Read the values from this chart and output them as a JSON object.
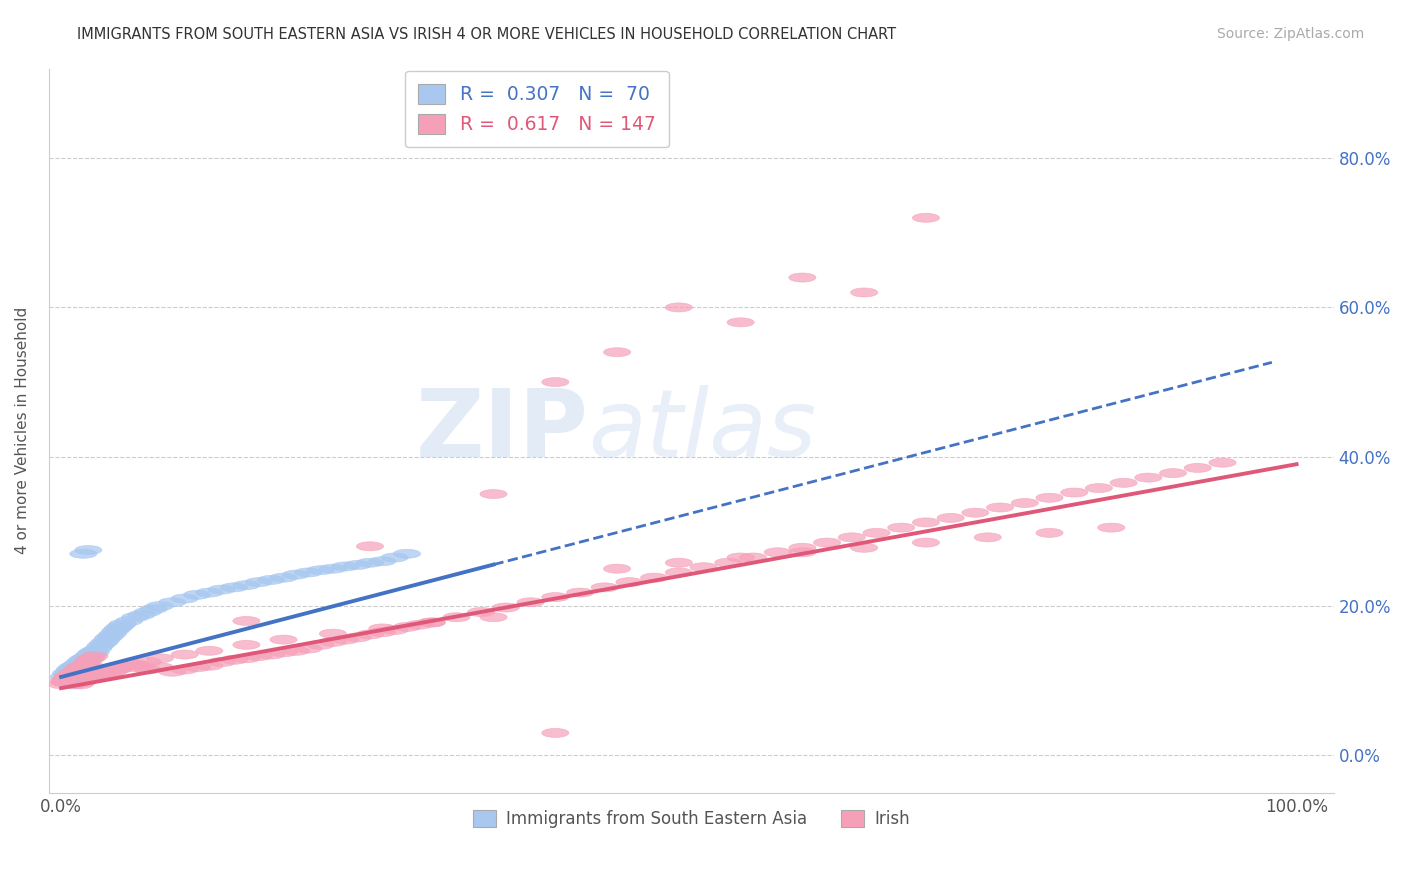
{
  "title": "IMMIGRANTS FROM SOUTH EASTERN ASIA VS IRISH 4 OR MORE VEHICLES IN HOUSEHOLD CORRELATION CHART",
  "source": "Source: ZipAtlas.com",
  "ylabel": "4 or more Vehicles in Household",
  "color_blue": "#a8c8f0",
  "color_pink": "#f5a0b8",
  "color_blue_line": "#4472c4",
  "color_pink_line": "#e05878",
  "color_blue_text": "#4472c4",
  "color_pink_text": "#e05878",
  "color_grid": "#cccccc",
  "ytick_vals": [
    0.0,
    0.2,
    0.4,
    0.6,
    0.8
  ],
  "ytick_labels": [
    "0.0%",
    "20.0%",
    "40.0%",
    "60.0%",
    "80.0%"
  ],
  "watermark_zip": "ZIP",
  "watermark_atlas": "atlas",
  "blue_x": [
    0.002,
    0.004,
    0.005,
    0.006,
    0.007,
    0.008,
    0.009,
    0.01,
    0.011,
    0.012,
    0.013,
    0.014,
    0.015,
    0.016,
    0.017,
    0.018,
    0.019,
    0.02,
    0.021,
    0.022,
    0.023,
    0.024,
    0.025,
    0.026,
    0.027,
    0.028,
    0.03,
    0.032,
    0.034,
    0.036,
    0.038,
    0.04,
    0.042,
    0.044,
    0.046,
    0.048,
    0.05,
    0.055,
    0.06,
    0.065,
    0.07,
    0.075,
    0.08,
    0.09,
    0.1,
    0.11,
    0.12,
    0.13,
    0.14,
    0.15,
    0.16,
    0.17,
    0.18,
    0.19,
    0.2,
    0.21,
    0.22,
    0.23,
    0.24,
    0.25,
    0.26,
    0.27,
    0.28,
    0.01,
    0.015,
    0.02,
    0.025,
    0.03,
    0.018,
    0.022
  ],
  "blue_y": [
    0.105,
    0.11,
    0.108,
    0.112,
    0.115,
    0.113,
    0.118,
    0.116,
    0.12,
    0.118,
    0.122,
    0.119,
    0.125,
    0.123,
    0.128,
    0.126,
    0.13,
    0.128,
    0.132,
    0.13,
    0.135,
    0.133,
    0.138,
    0.136,
    0.14,
    0.138,
    0.143,
    0.147,
    0.15,
    0.153,
    0.157,
    0.16,
    0.163,
    0.167,
    0.17,
    0.173,
    0.176,
    0.18,
    0.185,
    0.188,
    0.192,
    0.196,
    0.2,
    0.205,
    0.21,
    0.215,
    0.218,
    0.222,
    0.225,
    0.228,
    0.232,
    0.235,
    0.238,
    0.242,
    0.245,
    0.248,
    0.25,
    0.253,
    0.255,
    0.258,
    0.26,
    0.265,
    0.27,
    0.095,
    0.1,
    0.105,
    0.11,
    0.115,
    0.27,
    0.275
  ],
  "pink_x": [
    0.001,
    0.002,
    0.003,
    0.004,
    0.005,
    0.006,
    0.007,
    0.008,
    0.009,
    0.01,
    0.011,
    0.012,
    0.013,
    0.014,
    0.015,
    0.016,
    0.017,
    0.018,
    0.019,
    0.02,
    0.021,
    0.022,
    0.023,
    0.024,
    0.025,
    0.026,
    0.027,
    0.028,
    0.029,
    0.03,
    0.032,
    0.034,
    0.036,
    0.038,
    0.04,
    0.042,
    0.044,
    0.046,
    0.05,
    0.055,
    0.06,
    0.065,
    0.07,
    0.08,
    0.09,
    0.1,
    0.11,
    0.12,
    0.13,
    0.14,
    0.15,
    0.16,
    0.17,
    0.18,
    0.19,
    0.2,
    0.21,
    0.22,
    0.23,
    0.24,
    0.25,
    0.26,
    0.27,
    0.28,
    0.29,
    0.3,
    0.32,
    0.34,
    0.36,
    0.38,
    0.4,
    0.42,
    0.44,
    0.46,
    0.48,
    0.5,
    0.52,
    0.54,
    0.56,
    0.58,
    0.6,
    0.62,
    0.64,
    0.66,
    0.68,
    0.7,
    0.72,
    0.74,
    0.76,
    0.78,
    0.8,
    0.82,
    0.84,
    0.86,
    0.88,
    0.9,
    0.92,
    0.94,
    0.003,
    0.005,
    0.007,
    0.009,
    0.011,
    0.013,
    0.015,
    0.017,
    0.019,
    0.021,
    0.023,
    0.025,
    0.03,
    0.035,
    0.04,
    0.045,
    0.05,
    0.06,
    0.07,
    0.08,
    0.1,
    0.12,
    0.15,
    0.18,
    0.22,
    0.26,
    0.3,
    0.35,
    0.4,
    0.45,
    0.5,
    0.55,
    0.6,
    0.65,
    0.7,
    0.75,
    0.8,
    0.85,
    0.5,
    0.6,
    0.4,
    0.7,
    0.65,
    0.55,
    0.45,
    0.35,
    0.25,
    0.15
  ],
  "pink_y": [
    0.095,
    0.1,
    0.098,
    0.102,
    0.105,
    0.103,
    0.108,
    0.106,
    0.11,
    0.108,
    0.112,
    0.109,
    0.115,
    0.113,
    0.118,
    0.106,
    0.12,
    0.108,
    0.112,
    0.11,
    0.125,
    0.113,
    0.128,
    0.116,
    0.13,
    0.118,
    0.133,
    0.108,
    0.109,
    0.105,
    0.11,
    0.107,
    0.112,
    0.109,
    0.115,
    0.112,
    0.118,
    0.115,
    0.12,
    0.122,
    0.118,
    0.12,
    0.115,
    0.118,
    0.112,
    0.115,
    0.118,
    0.12,
    0.125,
    0.128,
    0.13,
    0.133,
    0.135,
    0.138,
    0.14,
    0.143,
    0.148,
    0.152,
    0.155,
    0.158,
    0.162,
    0.165,
    0.168,
    0.172,
    0.175,
    0.178,
    0.185,
    0.192,
    0.198,
    0.205,
    0.212,
    0.218,
    0.225,
    0.232,
    0.238,
    0.245,
    0.252,
    0.258,
    0.265,
    0.272,
    0.278,
    0.285,
    0.292,
    0.298,
    0.305,
    0.312,
    0.318,
    0.325,
    0.332,
    0.338,
    0.345,
    0.352,
    0.358,
    0.365,
    0.372,
    0.378,
    0.385,
    0.392,
    0.098,
    0.1,
    0.102,
    0.1,
    0.099,
    0.097,
    0.095,
    0.098,
    0.1,
    0.102,
    0.104,
    0.106,
    0.108,
    0.11,
    0.112,
    0.115,
    0.118,
    0.122,
    0.125,
    0.13,
    0.135,
    0.14,
    0.148,
    0.155,
    0.163,
    0.17,
    0.178,
    0.185,
    0.03,
    0.25,
    0.258,
    0.265,
    0.272,
    0.278,
    0.285,
    0.292,
    0.298,
    0.305,
    0.6,
    0.64,
    0.5,
    0.72,
    0.62,
    0.58,
    0.54,
    0.35,
    0.28,
    0.18
  ]
}
